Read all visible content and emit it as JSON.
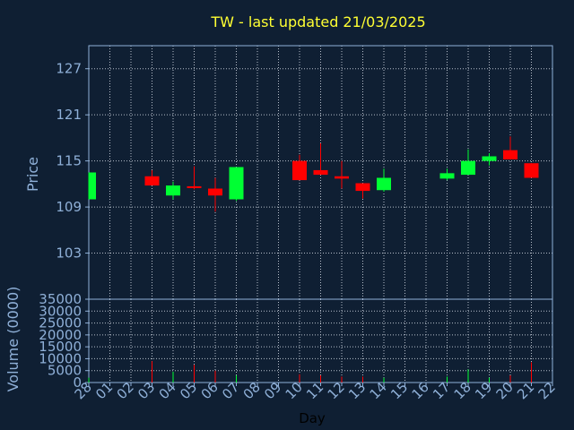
{
  "title": "TW - last updated 21/03/2025",
  "chart_data": [
    {
      "type": "candlestick",
      "title": "TW - last updated 21/03/2025",
      "ylabel": "Price",
      "ylim": [
        97,
        130
      ],
      "yticks": [
        "103",
        "109",
        "115",
        "121",
        "127"
      ],
      "categories": [
        "28",
        "01",
        "02",
        "03",
        "04",
        "05",
        "06",
        "07",
        "08",
        "09",
        "10",
        "11",
        "12",
        "13",
        "14",
        "15",
        "16",
        "17",
        "18",
        "19",
        "20",
        "21",
        "22"
      ],
      "grid": true,
      "colors": {
        "up": "#00ff33",
        "down": "#ff0000"
      },
      "candles": [
        {
          "x": "28",
          "open": 110.0,
          "close": 113.5,
          "high": 113.5,
          "low": 110.0
        },
        {
          "x": "03",
          "open": 113.0,
          "close": 111.8,
          "high": 113.8,
          "low": 111.8
        },
        {
          "x": "04",
          "open": 110.5,
          "close": 111.8,
          "high": 112.3,
          "low": 110.0
        },
        {
          "x": "05",
          "open": 111.7,
          "close": 111.5,
          "high": 114.3,
          "low": 111.3
        },
        {
          "x": "06",
          "open": 111.4,
          "close": 110.5,
          "high": 112.8,
          "low": 108.4
        },
        {
          "x": "07",
          "open": 110.0,
          "close": 114.2,
          "high": 114.2,
          "low": 109.8
        },
        {
          "x": "10",
          "open": 115.0,
          "close": 112.5,
          "high": 115.8,
          "low": 112.5
        },
        {
          "x": "11",
          "open": 113.8,
          "close": 113.2,
          "high": 117.3,
          "low": 113.2
        },
        {
          "x": "12",
          "open": 113.0,
          "close": 112.7,
          "high": 115.0,
          "low": 111.4
        },
        {
          "x": "13",
          "open": 112.1,
          "close": 111.1,
          "high": 112.1,
          "low": 110.1
        },
        {
          "x": "14",
          "open": 111.2,
          "close": 112.8,
          "high": 114.0,
          "low": 111.0
        },
        {
          "x": "17",
          "open": 112.7,
          "close": 113.4,
          "high": 114.0,
          "low": 112.5
        },
        {
          "x": "18",
          "open": 113.2,
          "close": 115.0,
          "high": 116.5,
          "low": 113.2
        },
        {
          "x": "19",
          "open": 115.0,
          "close": 115.6,
          "high": 116.0,
          "low": 114.4
        },
        {
          "x": "20",
          "open": 116.4,
          "close": 115.2,
          "high": 118.2,
          "low": 115.2
        },
        {
          "x": "21",
          "open": 114.7,
          "close": 112.8,
          "high": 114.7,
          "low": 112.8
        }
      ]
    },
    {
      "type": "bar",
      "xlabel": "Day",
      "ylabel": "Volume (0000)",
      "ylim": [
        0,
        35000
      ],
      "yticks": [
        "0",
        "5000",
        "10000",
        "15000",
        "20000",
        "25000",
        "30000",
        "35000"
      ],
      "categories": [
        "28",
        "01",
        "02",
        "03",
        "04",
        "05",
        "06",
        "07",
        "08",
        "09",
        "10",
        "11",
        "12",
        "13",
        "14",
        "15",
        "16",
        "17",
        "18",
        "19",
        "20",
        "21",
        "22"
      ],
      "grid": true,
      "bars": [
        {
          "x": "28",
          "value": 2000,
          "color": "#00ff33"
        },
        {
          "x": "03",
          "value": 9000,
          "color": "#ff0000"
        },
        {
          "x": "04",
          "value": 4500,
          "color": "#00ff33"
        },
        {
          "x": "05",
          "value": 7500,
          "color": "#ff0000"
        },
        {
          "x": "06",
          "value": 5000,
          "color": "#ff0000"
        },
        {
          "x": "07",
          "value": 3000,
          "color": "#00ff33"
        },
        {
          "x": "10",
          "value": 3500,
          "color": "#ff0000"
        },
        {
          "x": "11",
          "value": 3000,
          "color": "#ff0000"
        },
        {
          "x": "12",
          "value": 2500,
          "color": "#ff0000"
        },
        {
          "x": "13",
          "value": 2500,
          "color": "#ff0000"
        },
        {
          "x": "14",
          "value": 2000,
          "color": "#00ff33"
        },
        {
          "x": "17",
          "value": 2500,
          "color": "#00ff33"
        },
        {
          "x": "18",
          "value": 5500,
          "color": "#00ff33"
        },
        {
          "x": "19",
          "value": 2000,
          "color": "#00ff33"
        },
        {
          "x": "20",
          "value": 3000,
          "color": "#ff0000"
        },
        {
          "x": "21",
          "value": 8500,
          "color": "#ff0000"
        }
      ]
    }
  ]
}
